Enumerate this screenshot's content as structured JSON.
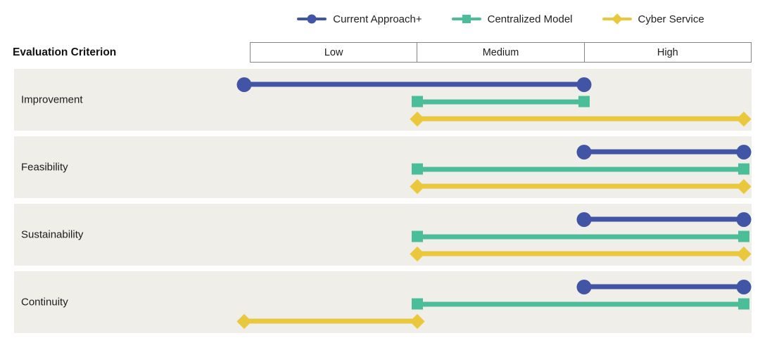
{
  "legend": {
    "items": [
      {
        "label": "Current Approach+",
        "marker": "circle",
        "color": "#4254A5"
      },
      {
        "label": "Centralized Model",
        "marker": "square",
        "color": "#4CBD99"
      },
      {
        "label": "Cyber Service",
        "marker": "diamond",
        "color": "#E9C83E"
      }
    ]
  },
  "header": {
    "criterion_label": "Evaluation Criterion",
    "columns": [
      "Low",
      "Medium",
      "High"
    ]
  },
  "chart_data": {
    "type": "range-bar",
    "title": "",
    "xlabel": "",
    "ylabel": "Evaluation Criterion",
    "categories_x": [
      "Low",
      "Medium",
      "High"
    ],
    "x_scale": {
      "min": 0,
      "max": 3,
      "mapping": "0 = start of Low, 1 = start of Medium, 2 = start of High, 3 = end of High"
    },
    "criteria": [
      "Improvement",
      "Feasibility",
      "Sustainability",
      "Continuity"
    ],
    "series": [
      {
        "name": "Current Approach+",
        "marker": "circle",
        "color": "#4254A5",
        "ranges": {
          "Improvement": [
            0,
            2
          ],
          "Feasibility": [
            2,
            3
          ],
          "Sustainability": [
            2,
            3
          ],
          "Continuity": [
            2,
            3
          ]
        }
      },
      {
        "name": "Centralized Model",
        "marker": "square",
        "color": "#4CBD99",
        "ranges": {
          "Improvement": [
            1,
            2
          ],
          "Feasibility": [
            1,
            3
          ],
          "Sustainability": [
            1,
            3
          ],
          "Continuity": [
            1,
            3
          ]
        }
      },
      {
        "name": "Cyber Service",
        "marker": "diamond",
        "color": "#E9C83E",
        "ranges": {
          "Improvement": [
            1,
            3
          ],
          "Feasibility": [
            1,
            3
          ],
          "Sustainability": [
            1,
            3
          ],
          "Continuity": [
            0,
            1
          ]
        }
      }
    ],
    "legend_position": "top-center",
    "grid": "off"
  },
  "colors": {
    "accent_blue": "#4254A5",
    "accent_teal": "#4CBD99",
    "accent_yellow": "#E9C83E",
    "row_band_background": "#EFEEE8",
    "header_border": "#848484",
    "text": "#1C1C1E",
    "page_background": "#FFFFFF"
  }
}
